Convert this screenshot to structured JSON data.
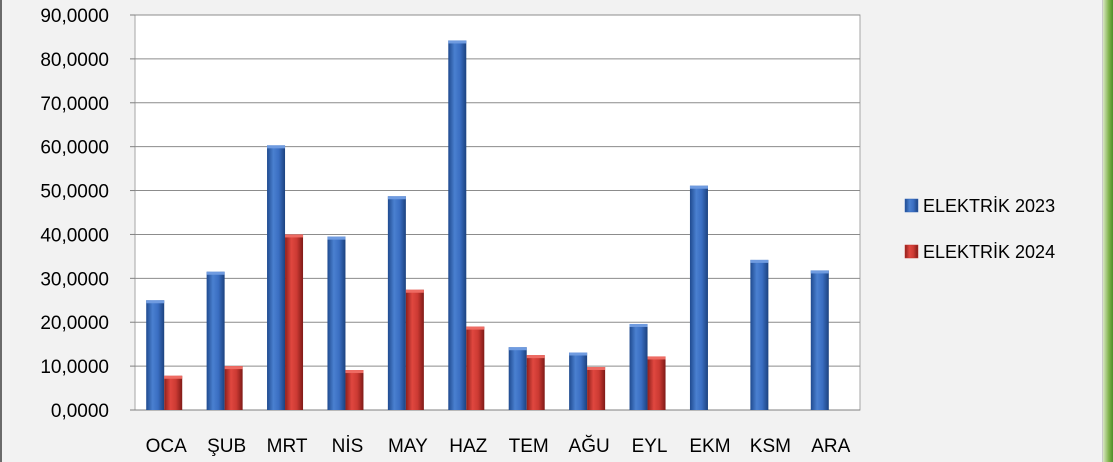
{
  "chart_data": {
    "type": "bar",
    "categories": [
      "OCA",
      "ŞUB",
      "MRT",
      "NİS",
      "MAY",
      "HAZ",
      "TEM",
      "AĞU",
      "EYL",
      "EKM",
      "KSM",
      "ARA"
    ],
    "series": [
      {
        "name": "ELEKTRİK 2023",
        "color": "#2f63b5",
        "values": [
          25.0,
          31.5,
          60.3,
          39.5,
          48.7,
          84.2,
          14.3,
          13.1,
          19.6,
          51.1,
          34.2,
          31.8
        ]
      },
      {
        "name": "ELEKTRİK 2024",
        "color": "#c0302b",
        "values": [
          7.8,
          10.0,
          40.0,
          9.1,
          27.4,
          19.0,
          12.5,
          9.8,
          12.2,
          null,
          null,
          null
        ]
      }
    ],
    "title": "",
    "xlabel": "",
    "ylabel": "",
    "ylim": [
      0,
      90
    ],
    "y_ticks": [
      "0,0000",
      "10,0000",
      "20,0000",
      "30,0000",
      "40,0000",
      "50,0000",
      "60,0000",
      "70,0000",
      "80,0000",
      "90,0000"
    ],
    "grid": true,
    "legend_position": "right"
  }
}
